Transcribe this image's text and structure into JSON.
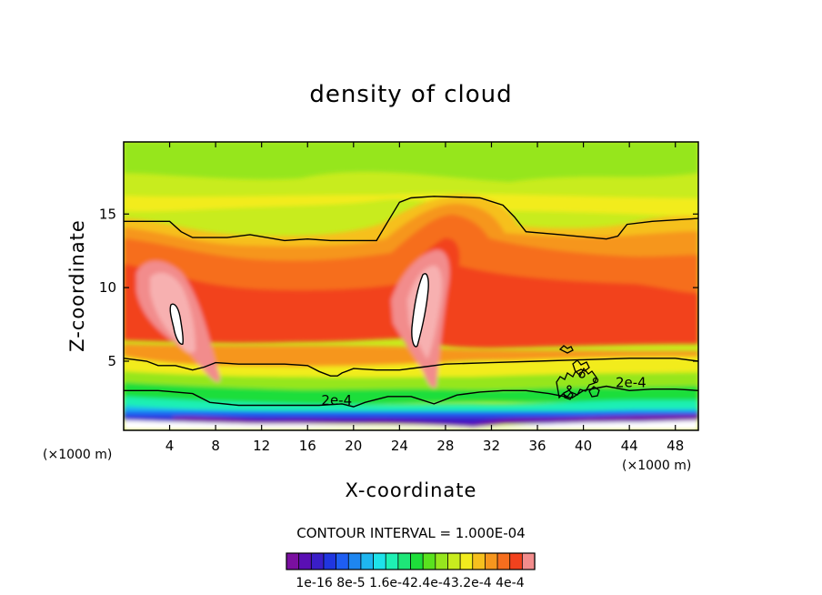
{
  "chart_data": {
    "type": "heatmap",
    "title": "density of cloud",
    "xlabel": "X-coordinate",
    "ylabel": "Z-coordinate",
    "x_unit": "(×1000 m)",
    "z_unit": "(×1000 m)",
    "xlim": [
      0,
      50
    ],
    "ylim": [
      0.3,
      19.9
    ],
    "x_ticks": [
      4,
      8,
      12,
      16,
      20,
      24,
      28,
      32,
      36,
      40,
      44,
      48
    ],
    "x_tick_labels": [
      "4",
      "8",
      "12",
      "16",
      "20",
      "24",
      "28",
      "32",
      "36",
      "40",
      "44",
      "48"
    ],
    "y_ticks": [
      5,
      10,
      15
    ],
    "y_tick_labels": [
      "5",
      "10",
      "15"
    ],
    "contour_interval_text": "CONTOUR INTERVAL = 1.000E-04",
    "contour_lines": [
      {
        "label": "2e-4",
        "label_positions": [
          [
            17.2,
            2.1
          ],
          [
            42.8,
            3.3
          ]
        ],
        "points": [
          [
            0,
            3.0
          ],
          [
            3,
            3.0
          ],
          [
            6,
            2.8
          ],
          [
            7.5,
            2.2
          ],
          [
            10,
            2.0
          ],
          [
            14,
            2.0
          ],
          [
            17,
            2.0
          ],
          [
            19,
            2.1
          ],
          [
            20,
            1.9
          ],
          [
            21,
            2.2
          ],
          [
            23,
            2.6
          ],
          [
            25,
            2.6
          ],
          [
            27,
            2.1
          ],
          [
            29,
            2.7
          ],
          [
            31,
            2.9
          ],
          [
            33,
            3.0
          ],
          [
            35,
            3.0
          ],
          [
            37,
            2.8
          ],
          [
            39,
            2.5
          ],
          [
            40,
            3.0
          ],
          [
            42,
            3.3
          ],
          [
            44,
            3.0
          ],
          [
            46,
            3.1
          ],
          [
            48,
            3.1
          ],
          [
            50,
            3.0
          ]
        ]
      },
      {
        "label": "",
        "points": [
          [
            0,
            14.5
          ],
          [
            4,
            14.5
          ],
          [
            5,
            13.8
          ],
          [
            6,
            13.4
          ],
          [
            9,
            13.4
          ],
          [
            11,
            13.6
          ],
          [
            14,
            13.2
          ],
          [
            16,
            13.3
          ],
          [
            18,
            13.2
          ],
          [
            22,
            13.2
          ],
          [
            23,
            14.5
          ],
          [
            24,
            15.8
          ],
          [
            25,
            16.1
          ],
          [
            27,
            16.2
          ],
          [
            31,
            16.1
          ],
          [
            33,
            15.6
          ],
          [
            34,
            14.8
          ],
          [
            35,
            13.8
          ],
          [
            38,
            13.6
          ],
          [
            42,
            13.3
          ],
          [
            43,
            13.5
          ],
          [
            43.8,
            14.3
          ],
          [
            46,
            14.5
          ],
          [
            50,
            14.7
          ]
        ]
      },
      {
        "label": "",
        "points": [
          [
            0,
            5.2
          ],
          [
            2,
            5.0
          ],
          [
            3,
            4.7
          ],
          [
            4.5,
            4.7
          ],
          [
            6,
            4.4
          ],
          [
            7,
            4.6
          ],
          [
            8,
            4.9
          ],
          [
            10,
            4.8
          ],
          [
            12,
            4.8
          ],
          [
            14,
            4.8
          ],
          [
            16,
            4.7
          ],
          [
            17,
            4.3
          ],
          [
            18,
            4.0
          ],
          [
            18.6,
            4.0
          ],
          [
            19,
            4.2
          ],
          [
            20,
            4.5
          ],
          [
            22,
            4.4
          ],
          [
            24,
            4.4
          ],
          [
            26,
            4.6
          ],
          [
            28,
            4.8
          ],
          [
            32,
            4.9
          ],
          [
            36,
            5.0
          ],
          [
            40,
            5.1
          ],
          [
            44,
            5.2
          ],
          [
            48,
            5.2
          ],
          [
            50,
            5.0
          ]
        ]
      }
    ],
    "colorbar": {
      "levels": 20,
      "labels": [
        "1e-16",
        "8e-5",
        "1.6e-4",
        "2.4e-4",
        "3.2e-4",
        "4e-4"
      ],
      "label_text": "1e-16 8e-5 1.6e-42.4e-43.2e-4 4e-4",
      "colors": [
        "#7a0fa0",
        "#5a0fb4",
        "#3a1ec8",
        "#2036e0",
        "#1e5ef2",
        "#1e86f0",
        "#1eb6f0",
        "#1ee2ea",
        "#1ef0b4",
        "#1ee678",
        "#1ede3a",
        "#5ae21e",
        "#96e61e",
        "#c8ec1e",
        "#f2ec1e",
        "#f6c01e",
        "#f6961e",
        "#f66e1e",
        "#f2421e",
        "#f28c8c"
      ]
    }
  }
}
